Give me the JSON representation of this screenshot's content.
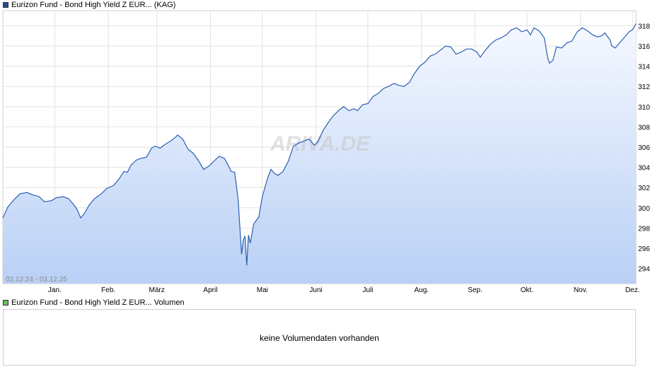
{
  "legend": {
    "price_label": "Eurizon Fund - Bond High Yield Z EUR... (KAG)",
    "price_color": "#1f4e9e",
    "volume_label": "Eurizon Fund - Bond High Yield Z EUR... Volumen",
    "volume_color": "#6bbf59"
  },
  "volume_panel": {
    "message": "keine Volumendaten vorhanden"
  },
  "watermark": "ARIVA.DE",
  "chart_data": {
    "type": "area",
    "date_range": "02.12.24 - 03.12.25",
    "line_color": "#2b5fb3",
    "fill_top_color": "#f5f8ff",
    "fill_bottom_color": "#b9d0f5",
    "grid": true,
    "ylim": [
      292.5,
      319.5
    ],
    "yticks": [
      294,
      296,
      298,
      300,
      302,
      304,
      306,
      308,
      310,
      312,
      314,
      316,
      318
    ],
    "xlim": [
      "2024-12-02",
      "2025-12-03"
    ],
    "xticks": [
      {
        "label": "Jan.",
        "date": "2025-01-01"
      },
      {
        "label": "Feb.",
        "date": "2025-02-01"
      },
      {
        "label": "März",
        "date": "2025-03-01"
      },
      {
        "label": "April",
        "date": "2025-04-01"
      },
      {
        "label": "Mai",
        "date": "2025-05-01"
      },
      {
        "label": "Juni",
        "date": "2025-06-01"
      },
      {
        "label": "Juli",
        "date": "2025-07-01"
      },
      {
        "label": "Aug.",
        "date": "2025-08-01"
      },
      {
        "label": "Sep.",
        "date": "2025-09-01"
      },
      {
        "label": "Okt.",
        "date": "2025-10-01"
      },
      {
        "label": "Nov.",
        "date": "2025-11-01"
      },
      {
        "label": "Dez.",
        "date": "2025-12-01"
      }
    ],
    "series": [
      {
        "points": [
          [
            "2024-12-02",
            299.0
          ],
          [
            "2024-12-05",
            300.1
          ],
          [
            "2024-12-09",
            300.9
          ],
          [
            "2024-12-12",
            301.4
          ],
          [
            "2024-12-16",
            301.5
          ],
          [
            "2024-12-19",
            301.3
          ],
          [
            "2024-12-23",
            301.1
          ],
          [
            "2024-12-26",
            300.6
          ],
          [
            "2024-12-30",
            300.7
          ],
          [
            "2025-01-02",
            301.0
          ],
          [
            "2025-01-06",
            301.1
          ],
          [
            "2025-01-09",
            300.9
          ],
          [
            "2025-01-12",
            300.3
          ],
          [
            "2025-01-14",
            299.8
          ],
          [
            "2025-01-16",
            299.0
          ],
          [
            "2025-01-18",
            299.4
          ],
          [
            "2025-01-21",
            300.3
          ],
          [
            "2025-01-24",
            300.9
          ],
          [
            "2025-01-28",
            301.4
          ],
          [
            "2025-01-31",
            301.9
          ],
          [
            "2025-02-04",
            302.2
          ],
          [
            "2025-02-07",
            302.8
          ],
          [
            "2025-02-10",
            303.6
          ],
          [
            "2025-02-12",
            303.5
          ],
          [
            "2025-02-14",
            304.2
          ],
          [
            "2025-02-17",
            304.7
          ],
          [
            "2025-02-20",
            304.9
          ],
          [
            "2025-02-23",
            305.0
          ],
          [
            "2025-02-26",
            305.9
          ],
          [
            "2025-02-28",
            306.1
          ],
          [
            "2025-03-03",
            305.9
          ],
          [
            "2025-03-06",
            306.3
          ],
          [
            "2025-03-09",
            306.6
          ],
          [
            "2025-03-12",
            307.0
          ],
          [
            "2025-03-13",
            307.2
          ],
          [
            "2025-03-16",
            306.8
          ],
          [
            "2025-03-19",
            305.8
          ],
          [
            "2025-03-22",
            305.4
          ],
          [
            "2025-03-25",
            304.7
          ],
          [
            "2025-03-28",
            303.8
          ],
          [
            "2025-03-31",
            304.1
          ],
          [
            "2025-04-03",
            304.6
          ],
          [
            "2025-04-06",
            305.1
          ],
          [
            "2025-04-09",
            304.9
          ],
          [
            "2025-04-11",
            304.3
          ],
          [
            "2025-04-13",
            303.6
          ],
          [
            "2025-04-15",
            303.5
          ],
          [
            "2025-04-17",
            300.8
          ],
          [
            "2025-04-19",
            295.4
          ],
          [
            "2025-04-20",
            296.8
          ],
          [
            "2025-04-21",
            297.2
          ],
          [
            "2025-04-22",
            294.3
          ],
          [
            "2025-04-23",
            297.3
          ],
          [
            "2025-04-24",
            296.5
          ],
          [
            "2025-04-26",
            298.4
          ],
          [
            "2025-04-29",
            299.1
          ],
          [
            "2025-05-01",
            301.1
          ],
          [
            "2025-05-04",
            302.9
          ],
          [
            "2025-05-06",
            303.8
          ],
          [
            "2025-05-08",
            303.4
          ],
          [
            "2025-05-10",
            303.2
          ],
          [
            "2025-05-13",
            303.6
          ],
          [
            "2025-05-16",
            304.6
          ],
          [
            "2025-05-19",
            306.1
          ],
          [
            "2025-05-22",
            306.4
          ],
          [
            "2025-05-25",
            306.6
          ],
          [
            "2025-05-28",
            306.8
          ],
          [
            "2025-05-31",
            306.2
          ],
          [
            "2025-06-02",
            306.5
          ],
          [
            "2025-06-05",
            307.6
          ],
          [
            "2025-06-08",
            308.4
          ],
          [
            "2025-06-11",
            309.1
          ],
          [
            "2025-06-14",
            309.6
          ],
          [
            "2025-06-17",
            310.0
          ],
          [
            "2025-06-20",
            309.6
          ],
          [
            "2025-06-23",
            309.8
          ],
          [
            "2025-06-25",
            309.6
          ],
          [
            "2025-06-28",
            310.2
          ],
          [
            "2025-07-01",
            310.3
          ],
          [
            "2025-07-04",
            311.0
          ],
          [
            "2025-07-07",
            311.3
          ],
          [
            "2025-07-10",
            311.8
          ],
          [
            "2025-07-13",
            312.0
          ],
          [
            "2025-07-16",
            312.3
          ],
          [
            "2025-07-19",
            312.1
          ],
          [
            "2025-07-22",
            312.0
          ],
          [
            "2025-07-25",
            312.4
          ],
          [
            "2025-07-28",
            313.3
          ],
          [
            "2025-07-31",
            314.0
          ],
          [
            "2025-08-03",
            314.4
          ],
          [
            "2025-08-06",
            315.0
          ],
          [
            "2025-08-09",
            315.2
          ],
          [
            "2025-08-12",
            315.6
          ],
          [
            "2025-08-15",
            316.0
          ],
          [
            "2025-08-18",
            315.9
          ],
          [
            "2025-08-21",
            315.2
          ],
          [
            "2025-08-24",
            315.4
          ],
          [
            "2025-08-27",
            315.7
          ],
          [
            "2025-08-30",
            315.7
          ],
          [
            "2025-09-02",
            315.4
          ],
          [
            "2025-09-04",
            314.9
          ],
          [
            "2025-09-07",
            315.6
          ],
          [
            "2025-09-10",
            316.2
          ],
          [
            "2025-09-13",
            316.6
          ],
          [
            "2025-09-16",
            316.8
          ],
          [
            "2025-09-19",
            317.1
          ],
          [
            "2025-09-22",
            317.6
          ],
          [
            "2025-09-25",
            317.8
          ],
          [
            "2025-09-28",
            317.4
          ],
          [
            "2025-10-01",
            317.6
          ],
          [
            "2025-10-03",
            317.1
          ],
          [
            "2025-10-05",
            317.8
          ],
          [
            "2025-10-08",
            317.5
          ],
          [
            "2025-10-11",
            316.8
          ],
          [
            "2025-10-13",
            314.8
          ],
          [
            "2025-10-14",
            314.3
          ],
          [
            "2025-10-16",
            314.6
          ],
          [
            "2025-10-18",
            315.9
          ],
          [
            "2025-10-21",
            315.8
          ],
          [
            "2025-10-24",
            316.3
          ],
          [
            "2025-10-27",
            316.5
          ],
          [
            "2025-10-30",
            317.4
          ],
          [
            "2025-11-02",
            317.8
          ],
          [
            "2025-11-05",
            317.5
          ],
          [
            "2025-11-08",
            317.1
          ],
          [
            "2025-11-11",
            316.9
          ],
          [
            "2025-11-13",
            317.0
          ],
          [
            "2025-11-15",
            317.3
          ],
          [
            "2025-11-18",
            316.6
          ],
          [
            "2025-11-19",
            316.0
          ],
          [
            "2025-11-21",
            315.8
          ],
          [
            "2025-11-23",
            316.2
          ],
          [
            "2025-11-25",
            316.6
          ],
          [
            "2025-11-27",
            317.0
          ],
          [
            "2025-11-29",
            317.4
          ],
          [
            "2025-12-01",
            317.6
          ],
          [
            "2025-12-03",
            318.2
          ]
        ]
      }
    ]
  }
}
